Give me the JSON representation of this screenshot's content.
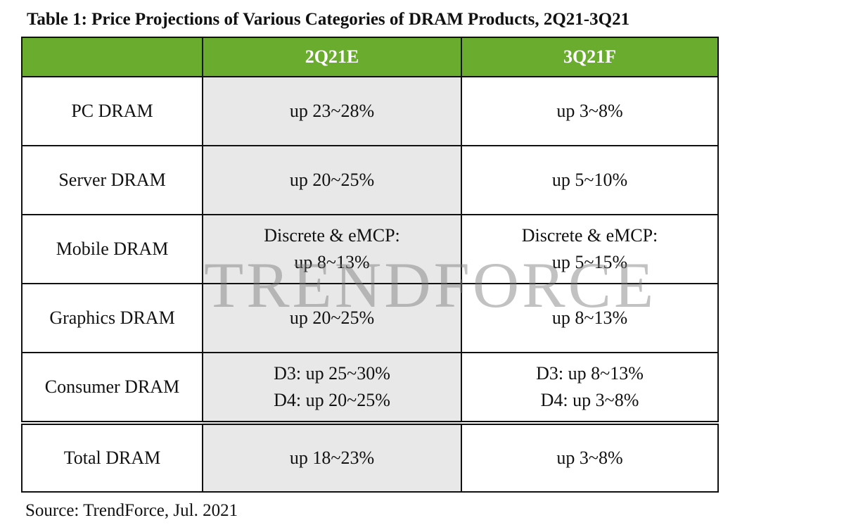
{
  "title": "Table 1: Price Projections of Various Categories of DRAM Products, 2Q21-3Q21",
  "table": {
    "columns": [
      "2Q21E",
      "3Q21F"
    ],
    "rows": [
      {
        "label": "PC DRAM",
        "cells": [
          [
            "up 23~28%"
          ],
          [
            "up 3~8%"
          ]
        ]
      },
      {
        "label": "Server DRAM",
        "cells": [
          [
            "up 20~25%"
          ],
          [
            "up 5~10%"
          ]
        ]
      },
      {
        "label": "Mobile DRAM",
        "cells": [
          [
            "Discrete & eMCP:",
            "up 8~13%"
          ],
          [
            "Discrete & eMCP:",
            "up 5~15%"
          ]
        ]
      },
      {
        "label": "Graphics DRAM",
        "cells": [
          [
            "up 20~25%"
          ],
          [
            "up 8~13%"
          ]
        ]
      },
      {
        "label": "Consumer DRAM",
        "cells": [
          [
            "D3: up 25~30%",
            "D4: up 20~25%"
          ],
          [
            "D3: up 8~13%",
            "D4: up 3~8%"
          ]
        ]
      },
      {
        "label": "Total DRAM",
        "cells": [
          [
            "up 18~23%"
          ],
          [
            "up 3~8%"
          ]
        ]
      }
    ]
  },
  "watermark": "TRENDFORCE",
  "source": "Source: TrendForce, Jul. 2021"
}
